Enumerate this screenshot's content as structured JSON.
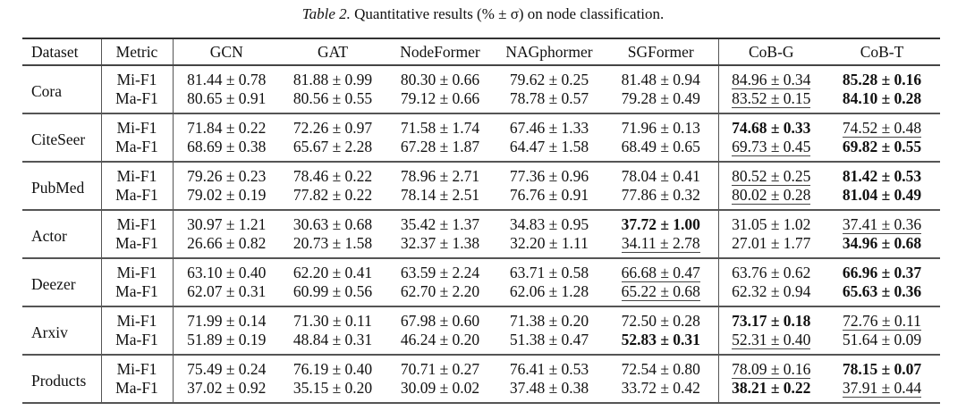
{
  "caption": {
    "label": "Table 2.",
    "text": "Quantitative results (% ± σ) on node classification."
  },
  "headers": [
    "Dataset",
    "Metric",
    "GCN",
    "GAT",
    "NodeFormer",
    "NAGphormer",
    "SGFormer",
    "CoB-G",
    "CoB-T"
  ],
  "groups": [
    {
      "dataset": "Cora",
      "rows": [
        {
          "metric": "Mi-F1",
          "cells": [
            {
              "v": "81.44 ± 0.78",
              "s": ""
            },
            {
              "v": "81.88 ± 0.99",
              "s": ""
            },
            {
              "v": "80.30 ± 0.66",
              "s": ""
            },
            {
              "v": "79.62 ± 0.25",
              "s": ""
            },
            {
              "v": "81.48 ± 0.94",
              "s": ""
            },
            {
              "v": "84.96 ± 0.34",
              "s": "u"
            },
            {
              "v": "85.28 ± 0.16",
              "s": "b"
            }
          ]
        },
        {
          "metric": "Ma-F1",
          "cells": [
            {
              "v": "80.65 ± 0.91",
              "s": ""
            },
            {
              "v": "80.56 ± 0.55",
              "s": ""
            },
            {
              "v": "79.12 ± 0.66",
              "s": ""
            },
            {
              "v": "78.78 ± 0.57",
              "s": ""
            },
            {
              "v": "79.28 ± 0.49",
              "s": ""
            },
            {
              "v": "83.52 ± 0.15",
              "s": "u"
            },
            {
              "v": "84.10 ± 0.28",
              "s": "b"
            }
          ]
        }
      ]
    },
    {
      "dataset": "CiteSeer",
      "rows": [
        {
          "metric": "Mi-F1",
          "cells": [
            {
              "v": "71.84 ± 0.22",
              "s": ""
            },
            {
              "v": "72.26 ± 0.97",
              "s": ""
            },
            {
              "v": "71.58 ± 1.74",
              "s": ""
            },
            {
              "v": "67.46 ± 1.33",
              "s": ""
            },
            {
              "v": "71.96 ± 0.13",
              "s": ""
            },
            {
              "v": "74.68 ± 0.33",
              "s": "b"
            },
            {
              "v": "74.52 ± 0.48",
              "s": "u"
            }
          ]
        },
        {
          "metric": "Ma-F1",
          "cells": [
            {
              "v": "68.69 ± 0.38",
              "s": ""
            },
            {
              "v": "65.67 ± 2.28",
              "s": ""
            },
            {
              "v": "67.28 ± 1.87",
              "s": ""
            },
            {
              "v": "64.47 ± 1.58",
              "s": ""
            },
            {
              "v": "68.49 ± 0.65",
              "s": ""
            },
            {
              "v": "69.73 ± 0.45",
              "s": "u"
            },
            {
              "v": "69.82 ± 0.55",
              "s": "b"
            }
          ]
        }
      ]
    },
    {
      "dataset": "PubMed",
      "rows": [
        {
          "metric": "Mi-F1",
          "cells": [
            {
              "v": "79.26 ± 0.23",
              "s": ""
            },
            {
              "v": "78.46 ± 0.22",
              "s": ""
            },
            {
              "v": "78.96 ± 2.71",
              "s": ""
            },
            {
              "v": "77.36 ± 0.96",
              "s": ""
            },
            {
              "v": "78.04 ± 0.41",
              "s": ""
            },
            {
              "v": "80.52 ± 0.25",
              "s": "u"
            },
            {
              "v": "81.42 ± 0.53",
              "s": "b"
            }
          ]
        },
        {
          "metric": "Ma-F1",
          "cells": [
            {
              "v": "79.02 ± 0.19",
              "s": ""
            },
            {
              "v": "77.82 ± 0.22",
              "s": ""
            },
            {
              "v": "78.14 ± 2.51",
              "s": ""
            },
            {
              "v": "76.76 ± 0.91",
              "s": ""
            },
            {
              "v": "77.86 ± 0.32",
              "s": ""
            },
            {
              "v": "80.02 ± 0.28",
              "s": "u"
            },
            {
              "v": "81.04 ± 0.49",
              "s": "b"
            }
          ]
        }
      ]
    },
    {
      "dataset": "Actor",
      "rows": [
        {
          "metric": "Mi-F1",
          "cells": [
            {
              "v": "30.97 ± 1.21",
              "s": ""
            },
            {
              "v": "30.63 ± 0.68",
              "s": ""
            },
            {
              "v": "35.42 ± 1.37",
              "s": ""
            },
            {
              "v": "34.83 ± 0.95",
              "s": ""
            },
            {
              "v": "37.72 ± 1.00",
              "s": "b"
            },
            {
              "v": "31.05 ± 1.02",
              "s": ""
            },
            {
              "v": "37.41 ± 0.36",
              "s": "u"
            }
          ]
        },
        {
          "metric": "Ma-F1",
          "cells": [
            {
              "v": "26.66 ± 0.82",
              "s": ""
            },
            {
              "v": "20.73 ± 1.58",
              "s": ""
            },
            {
              "v": "32.37 ± 1.38",
              "s": ""
            },
            {
              "v": "32.20 ± 1.11",
              "s": ""
            },
            {
              "v": "34.11 ± 2.78",
              "s": "u"
            },
            {
              "v": "27.01 ± 1.77",
              "s": ""
            },
            {
              "v": "34.96 ± 0.68",
              "s": "b"
            }
          ]
        }
      ]
    },
    {
      "dataset": "Deezer",
      "rows": [
        {
          "metric": "Mi-F1",
          "cells": [
            {
              "v": "63.10 ± 0.40",
              "s": ""
            },
            {
              "v": "62.20 ± 0.41",
              "s": ""
            },
            {
              "v": "63.59 ± 2.24",
              "s": ""
            },
            {
              "v": "63.71 ± 0.58",
              "s": ""
            },
            {
              "v": "66.68 ± 0.47",
              "s": "u"
            },
            {
              "v": "63.76 ± 0.62",
              "s": ""
            },
            {
              "v": "66.96 ± 0.37",
              "s": "b"
            }
          ]
        },
        {
          "metric": "Ma-F1",
          "cells": [
            {
              "v": "62.07 ± 0.31",
              "s": ""
            },
            {
              "v": "60.99 ± 0.56",
              "s": ""
            },
            {
              "v": "62.70 ± 2.20",
              "s": ""
            },
            {
              "v": "62.06 ± 1.28",
              "s": ""
            },
            {
              "v": "65.22 ± 0.68",
              "s": "u"
            },
            {
              "v": "62.32 ± 0.94",
              "s": ""
            },
            {
              "v": "65.63 ± 0.36",
              "s": "b"
            }
          ]
        }
      ]
    },
    {
      "dataset": "Arxiv",
      "rows": [
        {
          "metric": "Mi-F1",
          "cells": [
            {
              "v": "71.99 ± 0.14",
              "s": ""
            },
            {
              "v": "71.30 ± 0.11",
              "s": ""
            },
            {
              "v": "67.98 ± 0.60",
              "s": ""
            },
            {
              "v": "71.38 ± 0.20",
              "s": ""
            },
            {
              "v": "72.50 ± 0.28",
              "s": ""
            },
            {
              "v": "73.17 ± 0.18",
              "s": "b"
            },
            {
              "v": "72.76 ± 0.11",
              "s": "u"
            }
          ]
        },
        {
          "metric": "Ma-F1",
          "cells": [
            {
              "v": "51.89 ± 0.19",
              "s": ""
            },
            {
              "v": "48.84 ± 0.31",
              "s": ""
            },
            {
              "v": "46.24 ± 0.20",
              "s": ""
            },
            {
              "v": "51.38 ± 0.47",
              "s": ""
            },
            {
              "v": "52.83 ± 0.31",
              "s": "b"
            },
            {
              "v": "52.31 ± 0.40",
              "s": "u"
            },
            {
              "v": "51.64 ± 0.09",
              "s": ""
            }
          ]
        }
      ]
    },
    {
      "dataset": "Products",
      "rows": [
        {
          "metric": "Mi-F1",
          "cells": [
            {
              "v": "75.49 ± 0.24",
              "s": ""
            },
            {
              "v": "76.19 ± 0.40",
              "s": ""
            },
            {
              "v": "70.71 ± 0.27",
              "s": ""
            },
            {
              "v": "76.41 ± 0.53",
              "s": ""
            },
            {
              "v": "72.54 ± 0.80",
              "s": ""
            },
            {
              "v": "78.09 ± 0.16",
              "s": "u"
            },
            {
              "v": "78.15 ± 0.07",
              "s": "b"
            }
          ]
        },
        {
          "metric": "Ma-F1",
          "cells": [
            {
              "v": "37.02 ± 0.92",
              "s": ""
            },
            {
              "v": "35.15 ± 0.20",
              "s": ""
            },
            {
              "v": "30.09 ± 0.02",
              "s": ""
            },
            {
              "v": "37.48 ± 0.38",
              "s": ""
            },
            {
              "v": "33.72 ± 0.42",
              "s": ""
            },
            {
              "v": "38.21 ± 0.22",
              "s": "b"
            },
            {
              "v": "37.91 ± 0.44",
              "s": "u"
            }
          ]
        }
      ]
    }
  ]
}
